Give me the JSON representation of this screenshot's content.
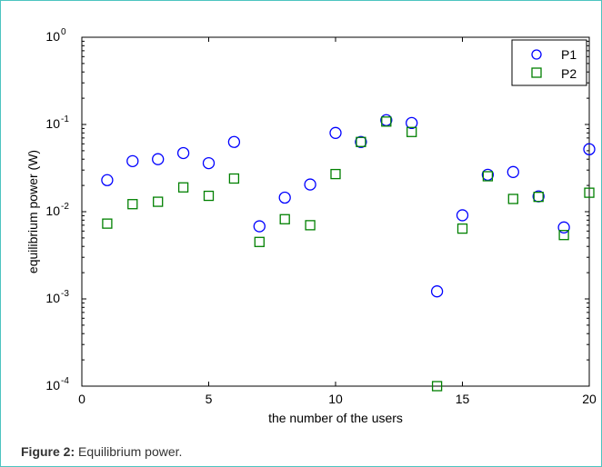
{
  "caption": {
    "label": "Figure 2:",
    "text": "Equilibrium power."
  },
  "colors": {
    "frame": "#4cc4c0",
    "series_p1": "#0000ff",
    "series_p2": "#008000"
  },
  "chart_data": {
    "type": "scatter",
    "title": "",
    "xlabel": "the number of the users",
    "ylabel": "equilibrium power (W)",
    "xlim": [
      0,
      20
    ],
    "ylim": [
      0.0001,
      1
    ],
    "yscale": "log",
    "x_ticks": [
      0,
      5,
      10,
      15,
      20
    ],
    "y_ticks": [
      {
        "value": 0.0001,
        "base": "10",
        "exp": "-4"
      },
      {
        "value": 0.001,
        "base": "10",
        "exp": "-3"
      },
      {
        "value": 0.01,
        "base": "10",
        "exp": "-2"
      },
      {
        "value": 0.1,
        "base": "10",
        "exp": "-1"
      },
      {
        "value": 1,
        "base": "10",
        "exp": "0"
      }
    ],
    "grid": false,
    "legend_position": "top-right",
    "series": [
      {
        "name": "P1",
        "marker": "circle",
        "color": "#0000ff",
        "x": [
          1,
          2,
          3,
          4,
          5,
          6,
          7,
          8,
          9,
          10,
          11,
          12,
          13,
          14,
          15,
          16,
          17,
          18,
          19,
          20
        ],
        "y": [
          0.023,
          0.038,
          0.04,
          0.047,
          0.036,
          0.063,
          0.0068,
          0.0145,
          0.0205,
          0.08,
          0.063,
          0.112,
          0.104,
          0.00122,
          0.0091,
          0.0265,
          0.0285,
          0.015,
          0.0066,
          0.052
        ]
      },
      {
        "name": "P2",
        "marker": "square",
        "color": "#008000",
        "x": [
          1,
          2,
          3,
          4,
          5,
          6,
          7,
          8,
          9,
          10,
          11,
          12,
          13,
          14,
          15,
          16,
          17,
          18,
          19,
          20
        ],
        "y": [
          0.0073,
          0.0122,
          0.013,
          0.019,
          0.0152,
          0.024,
          0.0045,
          0.0082,
          0.007,
          0.027,
          0.063,
          0.108,
          0.082,
          0.0001,
          0.0064,
          0.0255,
          0.014,
          0.0148,
          0.0054,
          0.0165
        ]
      }
    ]
  }
}
